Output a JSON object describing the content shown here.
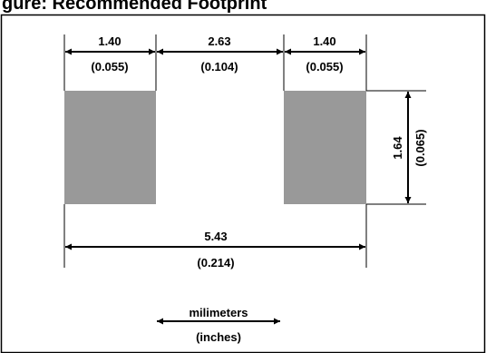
{
  "title": "gure: Recommended Footprint",
  "dimensions": {
    "pad_width_left": {
      "mm": "1.40",
      "in": "(0.055)"
    },
    "pad_gap": {
      "mm": "2.63",
      "in": "(0.104)"
    },
    "pad_width_right": {
      "mm": "1.40",
      "in": "(0.055)"
    },
    "pad_height": {
      "mm": "1.64",
      "in": "(0.065)"
    },
    "overall_length": {
      "mm": "5.43",
      "in": "(0.214)"
    }
  },
  "legend": {
    "primary_unit": "milimeters",
    "secondary_unit": "(inches)"
  },
  "colors": {
    "pad": "#999999",
    "line": "#000000",
    "background": "#ffffff"
  }
}
